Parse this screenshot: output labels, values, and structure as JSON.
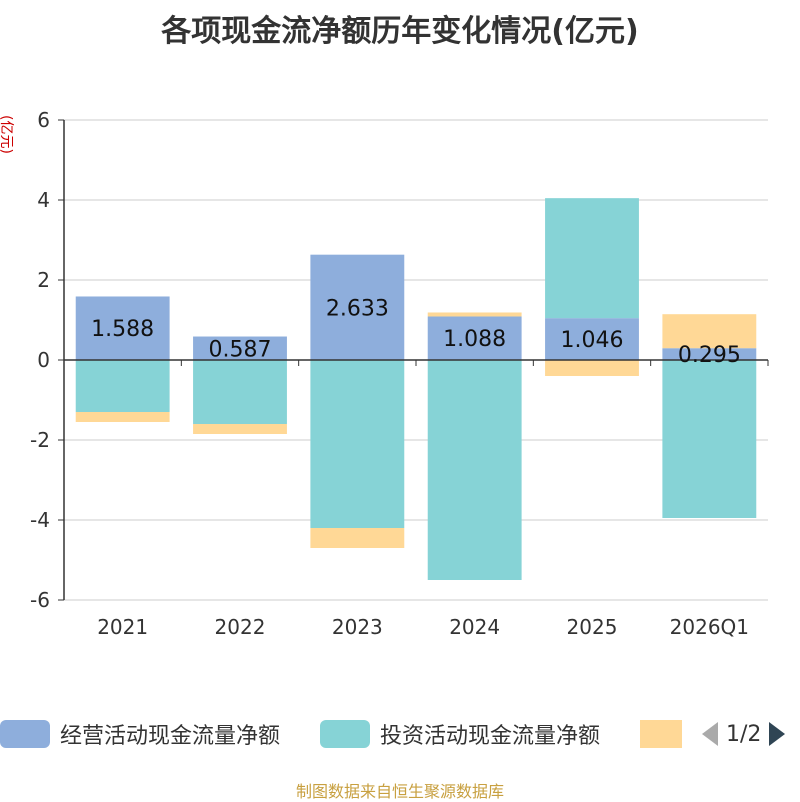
{
  "chart_data": {
    "type": "bar",
    "stacked": true,
    "title": "各项现金流净额历年变化情况(亿元)",
    "ylabel": "(亿元)",
    "xlabel": "",
    "ylim": [
      -6,
      6
    ],
    "yticks": [
      6,
      4,
      2,
      0,
      -2,
      -4,
      -6
    ],
    "categories": [
      "2021",
      "2022",
      "2023",
      "2024",
      "2025",
      "2026Q1"
    ],
    "series": [
      {
        "name": "经营活动现金流量净额",
        "color": "#8EAEDC",
        "values": [
          1.588,
          0.587,
          2.633,
          1.088,
          1.046,
          0.295
        ],
        "labels": [
          "1.588",
          "0.587",
          "2.633",
          "1.088",
          "1.046",
          "0.295"
        ]
      },
      {
        "name": "投资活动现金流量净额",
        "color": "#86D3D6",
        "values": [
          -1.3,
          -1.6,
          -4.2,
          -5.5,
          3.0,
          -3.95
        ]
      },
      {
        "name": "",
        "color": "#FFD896",
        "values": [
          -0.25,
          -0.25,
          -0.5,
          0.1,
          -0.4,
          0.85
        ]
      }
    ]
  },
  "legend": {
    "item1": "经营活动现金流量净额",
    "item2": "投资活动现金流量净额",
    "pager": "1/2"
  },
  "source": "制图数据来自恒生聚源数据库"
}
